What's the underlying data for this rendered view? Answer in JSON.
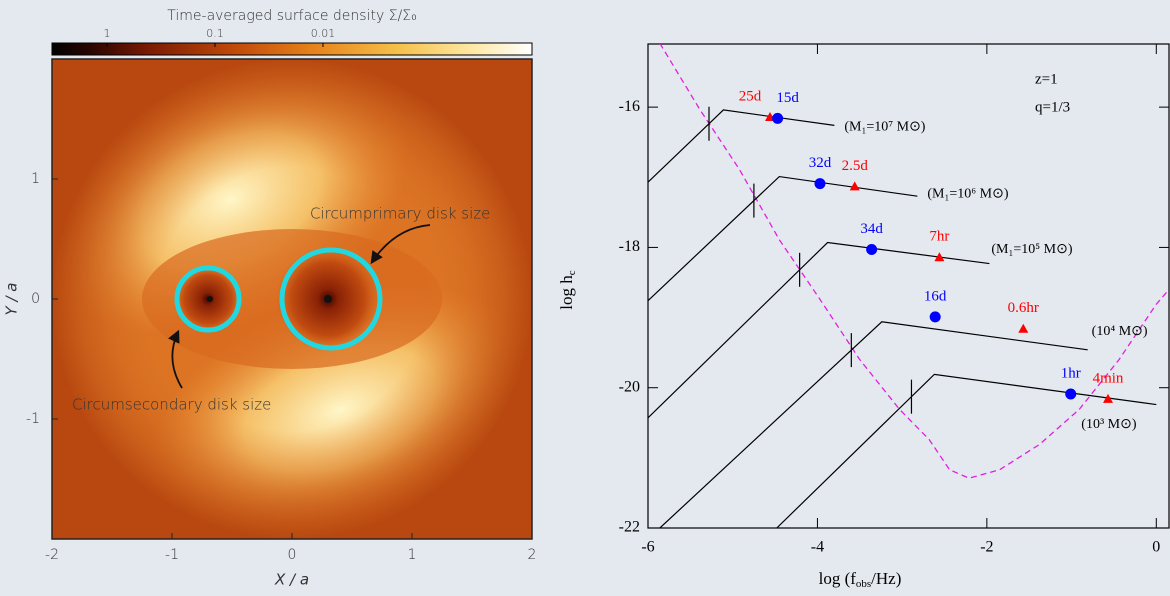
{
  "chart_data": [
    {
      "type": "heatmap",
      "colorbar_title": "Time-averaged surface density Σ/Σ₀",
      "colorbar_scale": "log",
      "clim": [
        3.23,
        0.000116
      ],
      "cticks": [
        1,
        0.1,
        0.01
      ],
      "xlabel": "X / a",
      "ylabel": "Y / a",
      "xlim": [
        -2,
        2
      ],
      "ylim": [
        -2,
        2
      ],
      "xticks": [
        -2,
        -1,
        0,
        1,
        2
      ],
      "yticks": [
        -1,
        0,
        1
      ],
      "annotations": [
        "Circumprimary disk size",
        "Circumsecondary disk size"
      ]
    },
    {
      "type": "line",
      "xlabel": [
        "log (f",
        "obs",
        "/Hz)"
      ],
      "ylabel": [
        "log h",
        "c"
      ],
      "xlim": [
        -6,
        0.15
      ],
      "ylim": [
        -22,
        -15.1
      ],
      "xticks": [
        -6,
        -4,
        -2,
        0
      ],
      "yticks": [
        -22,
        -20,
        -18,
        -16
      ],
      "annotations": [
        "z=1",
        "q=1/3"
      ],
      "series": [
        {
          "name": "(M₁=10⁷ M⊙)",
          "color": "#000000",
          "x": [
            -6,
            -5.11,
            -3.8
          ],
          "values": [
            -17.07,
            -16.04,
            -16.26
          ],
          "break_x": -5.28,
          "markers": [
            {
              "label": "25d",
              "color": "#ff0000",
              "shape": "triangle",
              "x": -4.56,
              "y": -16.14
            },
            {
              "label": "15d",
              "color": "#0000ff",
              "shape": "circle",
              "x": -4.47,
              "y": -16.16
            }
          ]
        },
        {
          "name": "(M₁=10⁶ M⊙)",
          "color": "#000000",
          "x": [
            -6,
            -4.45,
            -2.82
          ],
          "values": [
            -18.76,
            -16.99,
            -17.27
          ],
          "break_x": -4.75,
          "markers": [
            {
              "label": "32d",
              "color": "#0000ff",
              "shape": "circle",
              "x": -3.97,
              "y": -17.09
            },
            {
              "label": "2.5d",
              "color": "#ff0000",
              "shape": "triangle",
              "x": -3.56,
              "y": -17.13
            }
          ]
        },
        {
          "name": "(M₁=10⁵ M⊙)",
          "color": "#000000",
          "x": [
            -6,
            -3.88,
            -1.97
          ],
          "values": [
            -20.43,
            -17.93,
            -18.23
          ],
          "break_x": -4.21,
          "markers": [
            {
              "label": "34d",
              "color": "#0000ff",
              "shape": "circle",
              "x": -3.36,
              "y": -18.03
            },
            {
              "label": "7hr",
              "color": "#ff0000",
              "shape": "triangle",
              "x": -2.56,
              "y": -18.14
            }
          ]
        },
        {
          "name": "(10⁴ M⊙)",
          "color": "#000000",
          "x": [
            -5.86,
            -3.24,
            -0.81
          ],
          "values": [
            -22,
            -19.06,
            -19.46
          ],
          "break_x": -3.6,
          "markers": [
            {
              "label": "16d",
              "color": "#0000ff",
              "shape": "circle",
              "x": -2.61,
              "y": -18.99
            },
            {
              "label": "0.6hr",
              "color": "#ff0000",
              "shape": "triangle",
              "x": -1.57,
              "y": -19.16
            }
          ]
        },
        {
          "name": "(10³ M⊙)",
          "color": "#000000",
          "x": [
            -4.48,
            -2.62,
            0
          ],
          "values": [
            -22,
            -19.81,
            -20.24
          ],
          "break_x": -2.89,
          "markers": [
            {
              "label": "1hr",
              "color": "#0000ff",
              "shape": "circle",
              "x": -1.01,
              "y": -20.09
            },
            {
              "label": "4min",
              "color": "#ff0000",
              "shape": "triangle",
              "x": -0.57,
              "y": -20.16
            }
          ]
        }
      ],
      "sensitivity": {
        "color": "#e020e0",
        "x": [
          -5.86,
          -5.39,
          -4.92,
          -4.45,
          -3.97,
          -3.5,
          -3.03,
          -2.68,
          -2.44,
          -2.21,
          -1.85,
          -1.38,
          -0.91,
          -0.44,
          0,
          0.15
        ],
        "values": [
          -15.09,
          -16.03,
          -16.89,
          -17.89,
          -18.74,
          -19.6,
          -20.31,
          -20.74,
          -21.17,
          -21.29,
          -21.17,
          -20.81,
          -20.31,
          -19.6,
          -18.81,
          -18.6
        ]
      }
    }
  ]
}
